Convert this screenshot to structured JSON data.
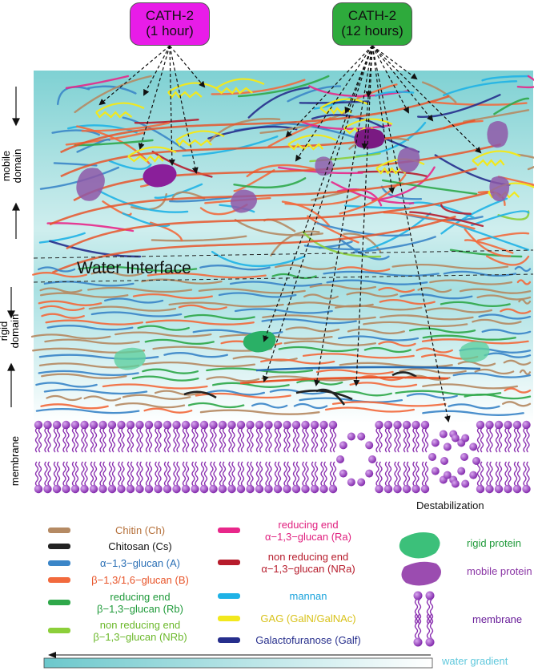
{
  "badges": {
    "left": {
      "line1": "CATH-2",
      "line2": "(1 hour)",
      "color": "#e81ce8"
    },
    "right": {
      "line1": "CATH-2",
      "line2": "(12 hours)",
      "color": "#2eaa3c"
    }
  },
  "side_labels": {
    "mobile": "mobile\ndomain",
    "rigid": "rigid\ndomain",
    "membrane": "membrane"
  },
  "interface_label": "Water Interface",
  "destabilization_label": "Destabilization",
  "gradient_label": "water gradient",
  "legend": {
    "left": [
      {
        "text": "Chitin (Ch)",
        "color": "#b58a63",
        "text_color": "#b5703a"
      },
      {
        "text": "Chitosan (Cs)",
        "color": "#222222",
        "text_color": "#111111"
      },
      {
        "text": "α−1,3−glucan (A)",
        "color": "#3b86c8",
        "text_color": "#2a6fb5"
      },
      {
        "text": "β−1,3/1,6−glucan (B)",
        "color": "#f26a3d",
        "text_color": "#e8552a"
      },
      {
        "text": "reducing end\nβ−1,3−glucan (Rb)",
        "color": "#2fa84a",
        "text_color": "#1f9a3a"
      },
      {
        "text": "non reducing end\nβ−1,3−glucan (NRb)",
        "color": "#8ccf3a",
        "text_color": "#6bb82a"
      }
    ],
    "middle": [
      {
        "text": "reducing end\nα−1,3−glucan (Ra)",
        "color": "#e8278a",
        "text_color": "#e0207f"
      },
      {
        "text": "non reducing end\nα−1,3−glucan (NRa)",
        "color": "#b71c2c",
        "text_color": "#b71c2c"
      },
      {
        "text": "mannan",
        "color": "#1fb2e6",
        "text_color": "#1aa3dc"
      },
      {
        "text": "GAG (GalN/GalNAc)",
        "color": "#f2e81d",
        "text_color": "#d8c21a"
      },
      {
        "text": "Galactofuranose (Galf)",
        "color": "#262e8c",
        "text_color": "#262e8c"
      }
    ],
    "right": [
      {
        "text": "rigid protein",
        "icon": "rigid-protein",
        "color": "#3cc07a",
        "text_color": "#1f9a3a"
      },
      {
        "text": "mobile protein",
        "icon": "mobile-protein",
        "color": "#9b4cb0",
        "text_color": "#8a35a5"
      },
      {
        "text": "membrane",
        "icon": "lipid",
        "color": "#8a2fb0",
        "text_color": "#6a1f9a"
      }
    ]
  }
}
